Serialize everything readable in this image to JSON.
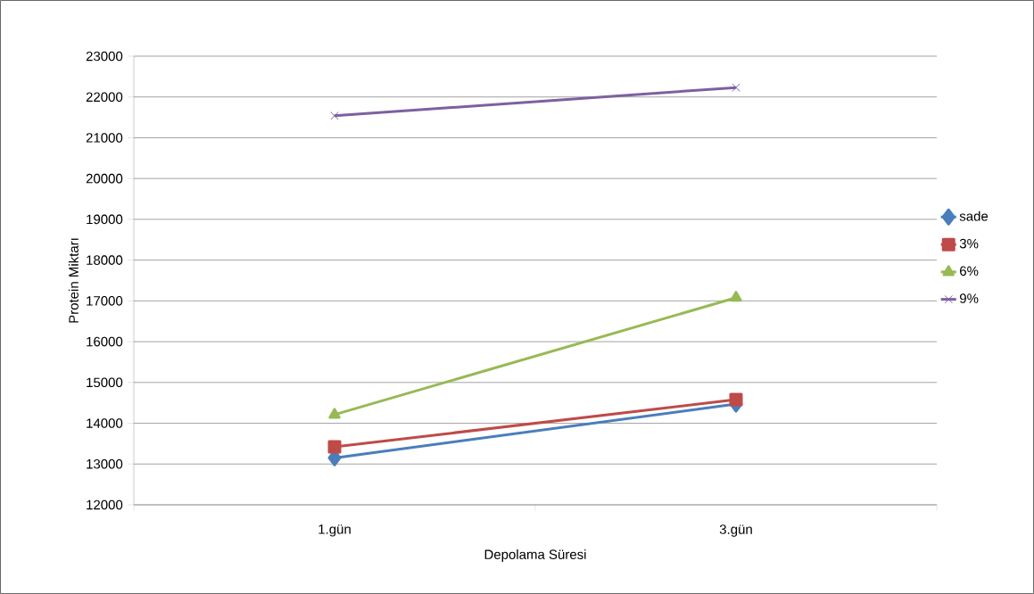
{
  "chart_data": {
    "type": "line",
    "xlabel": "Depolama Süresi",
    "ylabel": "Protein Miktarı",
    "categories": [
      "1.gün",
      "3.gün"
    ],
    "series": [
      {
        "name": "sade",
        "color": "#4a7ebb",
        "marker": "diamond",
        "values": [
          13150,
          14470
        ]
      },
      {
        "name": "3%",
        "color": "#be4b48",
        "marker": "square",
        "values": [
          13420,
          14580
        ]
      },
      {
        "name": "6%",
        "color": "#98b954",
        "marker": "triangle",
        "values": [
          14210,
          17080
        ]
      },
      {
        "name": "9%",
        "color": "#7d60a0",
        "marker": "cross",
        "values": [
          21540,
          22230
        ]
      }
    ],
    "ylim": [
      12000,
      23000
    ],
    "yticks": [
      12000,
      13000,
      14000,
      15000,
      16000,
      17000,
      18000,
      19000,
      20000,
      21000,
      22000,
      23000
    ],
    "grid": "y",
    "legend": "right"
  }
}
